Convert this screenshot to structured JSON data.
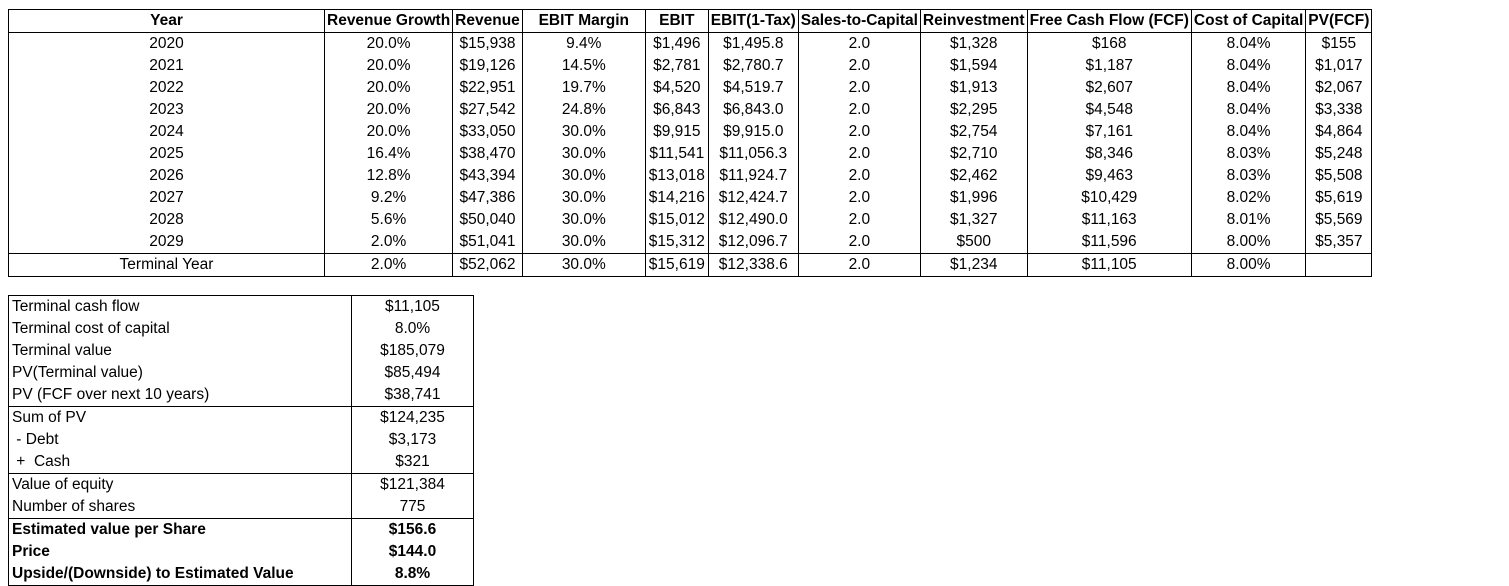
{
  "dcf": {
    "headers": [
      "Year",
      "Revenue Growth",
      "Revenue",
      "EBIT Margin",
      "EBIT",
      "EBIT(1-Tax)",
      "Sales-to-Capital",
      "Reinvestment",
      "Free Cash Flow (FCF)",
      "Cost of Capital",
      "PV(FCF)"
    ],
    "rows": [
      [
        "2020",
        "20.0%",
        "$15,938",
        "9.4%",
        "$1,496",
        "$1,495.8",
        "2.0",
        "$1,328",
        "$168",
        "8.04%",
        "$155"
      ],
      [
        "2021",
        "20.0%",
        "$19,126",
        "14.5%",
        "$2,781",
        "$2,780.7",
        "2.0",
        "$1,594",
        "$1,187",
        "8.04%",
        "$1,017"
      ],
      [
        "2022",
        "20.0%",
        "$22,951",
        "19.7%",
        "$4,520",
        "$4,519.7",
        "2.0",
        "$1,913",
        "$2,607",
        "8.04%",
        "$2,067"
      ],
      [
        "2023",
        "20.0%",
        "$27,542",
        "24.8%",
        "$6,843",
        "$6,843.0",
        "2.0",
        "$2,295",
        "$4,548",
        "8.04%",
        "$3,338"
      ],
      [
        "2024",
        "20.0%",
        "$33,050",
        "30.0%",
        "$9,915",
        "$9,915.0",
        "2.0",
        "$2,754",
        "$7,161",
        "8.04%",
        "$4,864"
      ],
      [
        "2025",
        "16.4%",
        "$38,470",
        "30.0%",
        "$11,541",
        "$11,056.3",
        "2.0",
        "$2,710",
        "$8,346",
        "8.03%",
        "$5,248"
      ],
      [
        "2026",
        "12.8%",
        "$43,394",
        "30.0%",
        "$13,018",
        "$11,924.7",
        "2.0",
        "$2,462",
        "$9,463",
        "8.03%",
        "$5,508"
      ],
      [
        "2027",
        "9.2%",
        "$47,386",
        "30.0%",
        "$14,216",
        "$12,424.7",
        "2.0",
        "$1,996",
        "$10,429",
        "8.02%",
        "$5,619"
      ],
      [
        "2028",
        "5.6%",
        "$50,040",
        "30.0%",
        "$15,012",
        "$12,490.0",
        "2.0",
        "$1,327",
        "$11,163",
        "8.01%",
        "$5,569"
      ],
      [
        "2029",
        "2.0%",
        "$51,041",
        "30.0%",
        "$15,312",
        "$12,096.7",
        "2.0",
        "$500",
        "$11,596",
        "8.00%",
        "$5,357"
      ],
      [
        "Terminal Year",
        "2.0%",
        "$52,062",
        "30.0%",
        "$15,619",
        "$12,338.6",
        "2.0",
        "$1,234",
        "$11,105",
        "8.00%",
        ""
      ]
    ]
  },
  "summary": {
    "rows": [
      {
        "label": "Terminal cash flow",
        "value": "$11,105"
      },
      {
        "label": "Terminal cost of capital",
        "value": "8.0%"
      },
      {
        "label": "Terminal value",
        "value": "$185,079"
      },
      {
        "label": "PV(Terminal value)",
        "value": "$85,494"
      },
      {
        "label": "PV (FCF over next 10 years)",
        "value": "$38,741"
      },
      {
        "label": "Sum of PV",
        "value": "$124,235"
      },
      {
        "label": " - Debt",
        "value": "$3,173"
      },
      {
        "label": " +  Cash",
        "value": "$321"
      },
      {
        "label": "Value of equity",
        "value": "$121,384"
      },
      {
        "label": "Number of shares",
        "value": "775"
      },
      {
        "label": "Estimated value per Share",
        "value": "$156.6"
      },
      {
        "label": "Price",
        "value": "$144.0"
      },
      {
        "label": "Upside/(Downside) to Estimated Value",
        "value": "8.8%"
      }
    ]
  }
}
